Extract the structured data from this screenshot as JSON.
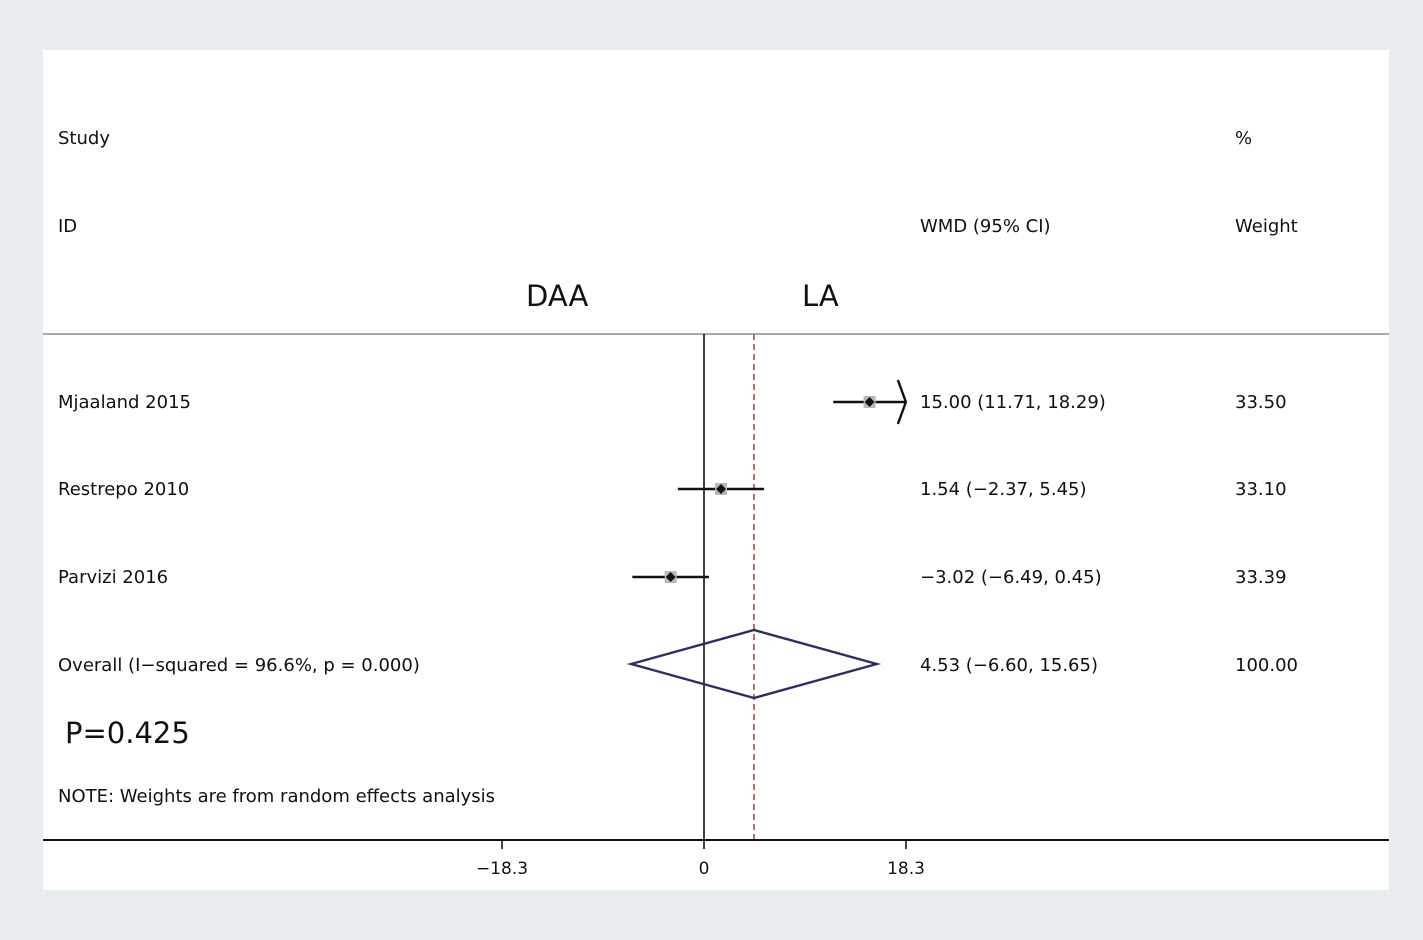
{
  "header": {
    "study_label": "Study",
    "id_label": "ID",
    "pct_label": "%",
    "weight_label": "Weight",
    "effect_label": "WMD (95% CI)",
    "favours_left": "DAA",
    "favours_right": "LA"
  },
  "p_value": "P=0.425",
  "note": "NOTE: Weights are from random effects analysis",
  "chart_data": {
    "type": "forest",
    "xticks": [
      -18.3,
      0,
      18.3
    ],
    "xtick_labels": [
      "−18.3",
      "0",
      "18.3"
    ],
    "xlim": [
      -18.3,
      18.3
    ],
    "null_line": 0,
    "overall_line": 4.53,
    "studies": [
      {
        "id": "Mjaaland 2015",
        "wmd": 15.0,
        "lower": 11.71,
        "upper": 18.29,
        "ci_text": "15.00 (11.71, 18.29)",
        "weight": "33.50",
        "clipped_right": true
      },
      {
        "id": "Restrepo 2010",
        "wmd": 1.54,
        "lower": -2.37,
        "upper": 5.45,
        "ci_text": "1.54 (−2.37, 5.45)",
        "weight": "33.10"
      },
      {
        "id": "Parvizi 2016",
        "wmd": -3.02,
        "lower": -6.49,
        "upper": 0.45,
        "ci_text": "−3.02 (−6.49, 0.45)",
        "weight": "33.39"
      }
    ],
    "overall": {
      "id": "Overall  (I−squared = 96.6%, p = 0.000)",
      "wmd": 4.53,
      "lower": -6.6,
      "upper": 15.65,
      "ci_text": "4.53 (−6.60, 15.65)",
      "weight": "100.00"
    },
    "colors": {
      "marker": "#111111",
      "weight_box": "#b8b8b8",
      "diamond": "#2a2f5e",
      "overall_line": "#a0504a",
      "axis": "#111111",
      "divider": "#aaaaaa"
    }
  }
}
